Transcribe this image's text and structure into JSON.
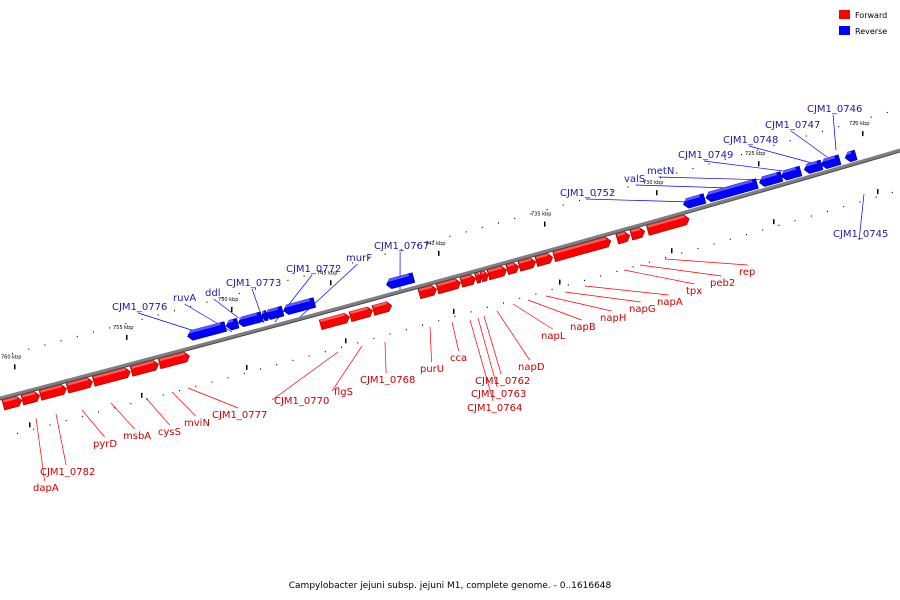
{
  "caption": "Campylobacter jejuni subsp. jejuni M1, complete genome. - 0..1616648",
  "colors": {
    "forward": "#ff0000",
    "reverse": "#0000ff",
    "backbone": "#7f7f7f",
    "label_forward": "#cc0000",
    "label_reverse": "#1a1aaa"
  },
  "legend": [
    {
      "label": "Forward",
      "color": "#ff0000"
    },
    {
      "label": "Reverse",
      "color": "#0000ff"
    }
  ],
  "ticks": [
    {
      "label": "720 kbp"
    },
    {
      "label": "725 kbp"
    },
    {
      "label": "730 kbp"
    },
    {
      "label": "735 kbp"
    },
    {
      "label": "740 kbp"
    },
    {
      "label": "745 kbp"
    },
    {
      "label": "750 kbp"
    },
    {
      "label": "755 kbp"
    },
    {
      "label": "760 kbp"
    }
  ],
  "genes": [
    {
      "name": "CJM1_0746",
      "strand": "reverse"
    },
    {
      "name": "CJM1_0747",
      "strand": "reverse"
    },
    {
      "name": "CJM1_0748",
      "strand": "reverse"
    },
    {
      "name": "CJM1_0749",
      "strand": "reverse"
    },
    {
      "name": "metN",
      "strand": "reverse"
    },
    {
      "name": "valS",
      "strand": "reverse"
    },
    {
      "name": "CJM1_0752",
      "strand": "reverse"
    },
    {
      "name": "CJM1_0745",
      "strand": "reverse"
    },
    {
      "name": "CJM1_0767",
      "strand": "reverse"
    },
    {
      "name": "murF",
      "strand": "reverse"
    },
    {
      "name": "CJM1_0772",
      "strand": "reverse"
    },
    {
      "name": "CJM1_0773",
      "strand": "reverse"
    },
    {
      "name": "ddl",
      "strand": "reverse"
    },
    {
      "name": "ruvA",
      "strand": "reverse"
    },
    {
      "name": "CJM1_0776",
      "strand": "reverse"
    },
    {
      "name": "rep",
      "strand": "forward"
    },
    {
      "name": "peb2",
      "strand": "forward"
    },
    {
      "name": "tpx",
      "strand": "forward"
    },
    {
      "name": "napA",
      "strand": "forward"
    },
    {
      "name": "napG",
      "strand": "forward"
    },
    {
      "name": "napH",
      "strand": "forward"
    },
    {
      "name": "napB",
      "strand": "forward"
    },
    {
      "name": "napL",
      "strand": "forward"
    },
    {
      "name": "napD",
      "strand": "forward"
    },
    {
      "name": "CJM1_0762",
      "strand": "forward"
    },
    {
      "name": "CJM1_0763",
      "strand": "forward"
    },
    {
      "name": "CJM1_0764",
      "strand": "forward"
    },
    {
      "name": "cca",
      "strand": "forward"
    },
    {
      "name": "purU",
      "strand": "forward"
    },
    {
      "name": "CJM1_0768",
      "strand": "forward"
    },
    {
      "name": "flgS",
      "strand": "forward"
    },
    {
      "name": "CJM1_0770",
      "strand": "forward"
    },
    {
      "name": "CJM1_0777",
      "strand": "forward"
    },
    {
      "name": "mviN",
      "strand": "forward"
    },
    {
      "name": "cysS",
      "strand": "forward"
    },
    {
      "name": "msbA",
      "strand": "forward"
    },
    {
      "name": "pyrD",
      "strand": "forward"
    },
    {
      "name": "CJM1_0782",
      "strand": "forward"
    },
    {
      "name": "dapA",
      "strand": "forward"
    }
  ]
}
